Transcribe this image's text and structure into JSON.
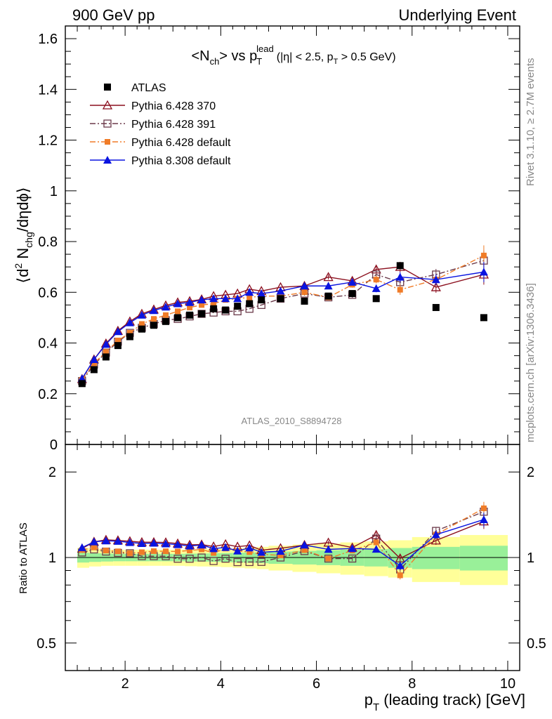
{
  "header": {
    "left": "900 GeV pp",
    "right": "Underlying Event"
  },
  "side_labels": {
    "rivet": "Rivet 3.1.10, ≥ 2.7M events",
    "mcplots": "mcplots.cern.ch [arXiv:1306.3436]"
  },
  "watermark": "ATLAS_2010_S8894728",
  "title": {
    "main": "<N",
    "main_sub": "ch",
    "main_mid": "> vs p",
    "main_sub2": "T",
    "main_sup": "lead",
    "cuts": "(|η| < 2.5, p",
    "cuts_sub": "T",
    "cuts_end": " > 0.5 GeV)"
  },
  "axes": {
    "ylabel_top": "⟨d",
    "ylabel_top_sup": "2",
    "ylabel_top_mid": " N",
    "ylabel_top_sub": "chg",
    "ylabel_top_end": "/dηdϕ⟩",
    "ylabel_bottom": "Ratio to ATLAS",
    "xlabel": "p",
    "xlabel_sub": "T",
    "xlabel_end": " (leading track) [GeV]",
    "y_ticks_top": [
      "0",
      "0.2",
      "0.4",
      "0.6",
      "0.8",
      "1",
      "1.2",
      "1.4",
      "1.6"
    ],
    "y_ticks_ratio": [
      "0.5",
      "1",
      "2"
    ],
    "x_ticks": [
      "2",
      "4",
      "6",
      "8",
      "10"
    ]
  },
  "legend": [
    {
      "label": "ATLAS",
      "color": "#000000",
      "marker": "square-filled",
      "line": "none"
    },
    {
      "label": "Pythia 6.428 370",
      "color": "#8b0f1e",
      "marker": "triangle-open",
      "line": "solid"
    },
    {
      "label": "Pythia 6.428 391",
      "color": "#6b3a4a",
      "marker": "square-open",
      "line": "dashdot"
    },
    {
      "label": "Pythia 6.428 default",
      "color": "#f07c28",
      "marker": "square-filled-small",
      "line": "dashdot"
    },
    {
      "label": "Pythia 8.308 default",
      "color": "#0a14e0",
      "marker": "triangle-filled",
      "line": "solid"
    }
  ],
  "chart_data": {
    "type": "scatter",
    "x_range": [
      0.75,
      10.25
    ],
    "y_range_top": [
      0,
      1.65
    ],
    "y_range_ratio_log": [
      0.4,
      2.5
    ],
    "x": [
      1.1,
      1.35,
      1.6,
      1.85,
      2.1,
      2.35,
      2.6,
      2.85,
      3.1,
      3.35,
      3.6,
      3.85,
      4.1,
      4.35,
      4.6,
      4.85,
      5.25,
      5.75,
      6.25,
      6.75,
      7.25,
      7.75,
      8.5,
      9.5
    ],
    "x_edges": [
      1.0,
      1.25,
      1.5,
      1.75,
      2.0,
      2.25,
      2.5,
      2.75,
      3.0,
      3.25,
      3.5,
      3.75,
      4.0,
      4.25,
      4.5,
      4.75,
      5.0,
      5.5,
      6.0,
      6.5,
      7.0,
      7.5,
      8.0,
      9.0,
      10.0
    ],
    "band_inner": [
      0.04,
      0.035,
      0.032,
      0.03,
      0.03,
      0.03,
      0.03,
      0.03,
      0.03,
      0.032,
      0.033,
      0.035,
      0.037,
      0.04,
      0.042,
      0.045,
      0.05,
      0.055,
      0.06,
      0.065,
      0.07,
      0.08,
      0.09,
      0.1
    ],
    "band_outer": [
      0.08,
      0.07,
      0.065,
      0.065,
      0.065,
      0.065,
      0.065,
      0.065,
      0.065,
      0.068,
      0.07,
      0.072,
      0.075,
      0.08,
      0.085,
      0.09,
      0.1,
      0.11,
      0.12,
      0.13,
      0.14,
      0.15,
      0.18,
      0.2
    ],
    "series": [
      {
        "name": "ATLAS",
        "values": [
          0.24,
          0.295,
          0.345,
          0.39,
          0.425,
          0.455,
          0.47,
          0.485,
          0.5,
          0.51,
          0.515,
          0.535,
          0.53,
          0.545,
          0.555,
          0.57,
          0.575,
          0.565,
          0.585,
          0.595,
          0.575,
          0.705,
          0.54,
          0.5
        ]
      },
      {
        "name": "Pythia 6.428 370",
        "values": [
          0.258,
          0.335,
          0.398,
          0.448,
          0.485,
          0.515,
          0.532,
          0.548,
          0.56,
          0.565,
          0.572,
          0.585,
          0.59,
          0.595,
          0.612,
          0.605,
          0.62,
          0.625,
          0.66,
          0.645,
          0.69,
          0.7,
          0.62,
          0.67
        ]
      },
      {
        "name": "Pythia 6.428 391",
        "values": [
          0.25,
          0.315,
          0.362,
          0.405,
          0.44,
          0.46,
          0.475,
          0.49,
          0.495,
          0.505,
          0.515,
          0.52,
          0.525,
          0.525,
          0.535,
          0.55,
          0.575,
          0.595,
          0.58,
          0.59,
          0.67,
          0.64,
          0.67,
          0.725
        ]
      },
      {
        "name": "Pythia 6.428 default",
        "values": [
          0.255,
          0.32,
          0.365,
          0.41,
          0.44,
          0.475,
          0.495,
          0.51,
          0.525,
          0.54,
          0.55,
          0.555,
          0.57,
          0.575,
          0.58,
          0.585,
          0.585,
          0.6,
          0.58,
          0.63,
          0.65,
          0.61,
          0.65,
          0.745
        ]
      },
      {
        "name": "Pythia 8.308 default",
        "values": [
          0.26,
          0.335,
          0.395,
          0.445,
          0.48,
          0.51,
          0.528,
          0.542,
          0.555,
          0.56,
          0.57,
          0.575,
          0.575,
          0.575,
          0.6,
          0.595,
          0.605,
          0.625,
          0.625,
          0.64,
          0.615,
          0.66,
          0.65,
          0.68
        ]
      }
    ],
    "errors": [
      0.004,
      0.004,
      0.004,
      0.004,
      0.004,
      0.004,
      0.004,
      0.004,
      0.004,
      0.004,
      0.004,
      0.005,
      0.005,
      0.005,
      0.006,
      0.006,
      0.006,
      0.008,
      0.01,
      0.012,
      0.015,
      0.02,
      0.022,
      0.04
    ]
  }
}
